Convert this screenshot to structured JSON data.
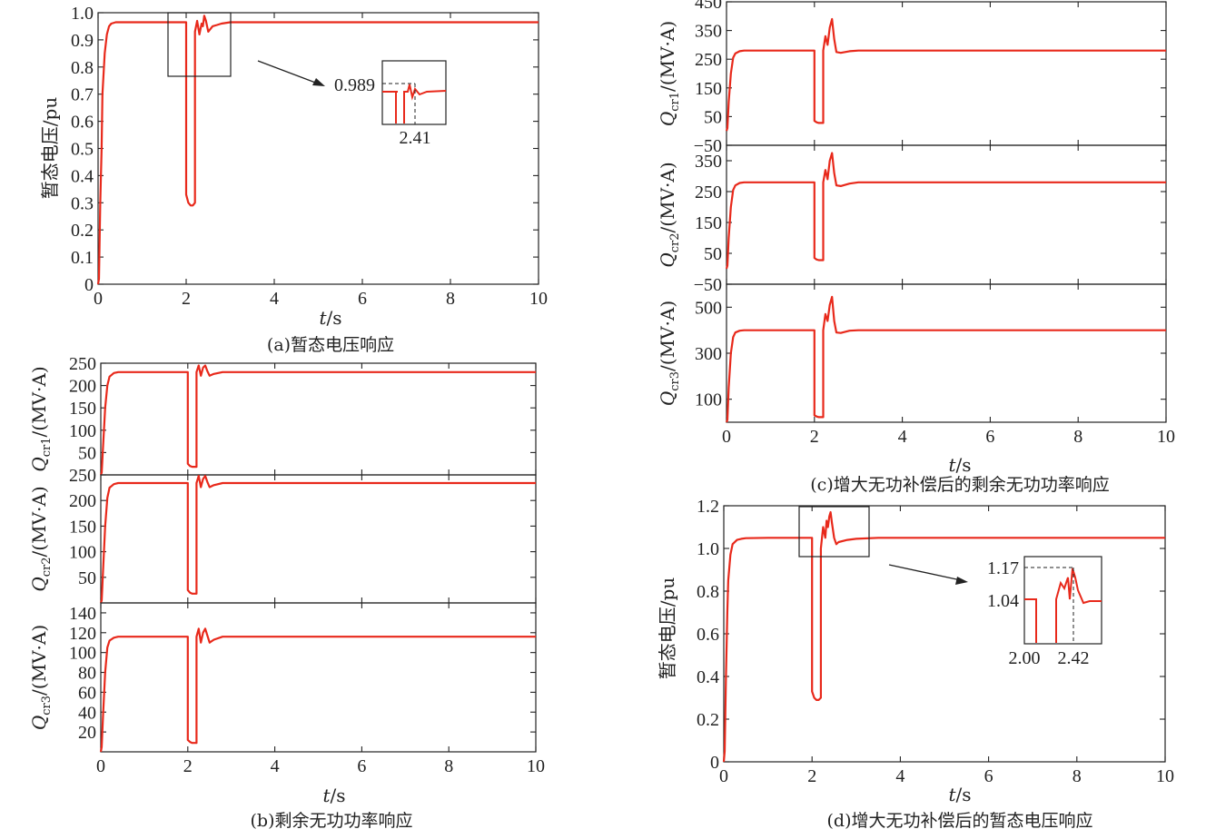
{
  "colors": {
    "trace": "#e8291b",
    "axis": "#222222",
    "annotation": "#222222"
  },
  "chart_data": [
    {
      "id": "a",
      "type": "line",
      "caption": "(a)暂态电压响应",
      "ylabel": "暂态电压/pu",
      "xlabel_var": "t",
      "xlabel_unit": "/s",
      "xlim": [
        0,
        10
      ],
      "xticks": [
        "0",
        "2",
        "4",
        "6",
        "8",
        "10"
      ],
      "ylim": [
        0,
        1.0
      ],
      "yticks": [
        "0",
        "0.1",
        "0.2",
        "0.3",
        "0.4",
        "0.5",
        "0.6",
        "0.7",
        "0.8",
        "0.9",
        "1.0"
      ],
      "series": [
        {
          "x": [
            0,
            0.02,
            0.05,
            0.08,
            0.1,
            0.15,
            0.2,
            0.25,
            0.3,
            0.4,
            0.5,
            1.0,
            1.5,
            1.95,
            2.0,
            2.0,
            2.05,
            2.1,
            2.15,
            2.2,
            2.2,
            2.25,
            2.3,
            2.35,
            2.38,
            2.41,
            2.45,
            2.5,
            2.55,
            2.6,
            2.7,
            2.8,
            3.0,
            3.5,
            4,
            6,
            8,
            10
          ],
          "y": [
            0.0,
            0.02,
            0.3,
            0.5,
            0.7,
            0.85,
            0.92,
            0.95,
            0.96,
            0.965,
            0.965,
            0.965,
            0.965,
            0.965,
            0.965,
            0.33,
            0.3,
            0.29,
            0.29,
            0.3,
            0.93,
            0.97,
            0.92,
            0.96,
            0.95,
            0.989,
            0.97,
            0.93,
            0.94,
            0.95,
            0.955,
            0.96,
            0.965,
            0.965,
            0.965,
            0.965,
            0.965,
            0.965
          ]
        }
      ],
      "annotations": [
        {
          "value": "0.989"
        },
        {
          "value": "2.41"
        }
      ]
    },
    {
      "id": "b",
      "type": "line",
      "caption": "(b)剩余无功功率响应",
      "xlabel_var": "t",
      "xlabel_unit": "/s",
      "xlim": [
        0,
        10
      ],
      "xticks": [
        "0",
        "2",
        "4",
        "6",
        "8",
        "10"
      ],
      "panels": [
        {
          "ylabel_sub": "cr1",
          "ylabel_unit": "/(MV·A)",
          "ylim": [
            0,
            250
          ],
          "yticks": [
            "50",
            "100",
            "150",
            "200",
            "250"
          ],
          "series": [
            {
              "x": [
                0,
                0.02,
                0.05,
                0.1,
                0.15,
                0.2,
                0.3,
                0.4,
                0.5,
                1.0,
                2.0,
                2.0,
                2.05,
                2.1,
                2.2,
                2.2,
                2.25,
                2.3,
                2.35,
                2.4,
                2.45,
                2.5,
                2.6,
                2.8,
                3.0,
                10
              ],
              "y": [
                0,
                5,
                60,
                150,
                200,
                220,
                228,
                230,
                230,
                230,
                230,
                25,
                20,
                18,
                18,
                230,
                245,
                222,
                240,
                245,
                232,
                222,
                226,
                230,
                230,
                230
              ]
            }
          ]
        },
        {
          "ylabel_sub": "cr2",
          "ylabel_unit": "/(MV·A)",
          "ylim": [
            0,
            250
          ],
          "yticks": [
            "50",
            "100",
            "150",
            "200",
            "250"
          ],
          "series": [
            {
              "x": [
                0,
                0.02,
                0.05,
                0.1,
                0.15,
                0.2,
                0.3,
                0.4,
                0.5,
                1.0,
                2.0,
                2.0,
                2.05,
                2.1,
                2.2,
                2.2,
                2.25,
                2.3,
                2.35,
                2.4,
                2.45,
                2.5,
                2.6,
                2.8,
                3.0,
                10
              ],
              "y": [
                0,
                5,
                60,
                150,
                205,
                225,
                232,
                234,
                234,
                234,
                234,
                25,
                20,
                18,
                18,
                234,
                248,
                226,
                242,
                248,
                236,
                226,
                230,
                234,
                234,
                234
              ]
            }
          ]
        },
        {
          "ylabel_sub": "cr3",
          "ylabel_unit": "/(MV·A)",
          "ylim": [
            0,
            150
          ],
          "yticks": [
            "20",
            "40",
            "60",
            "80",
            "100",
            "120",
            "140"
          ],
          "series": [
            {
              "x": [
                0,
                0.02,
                0.05,
                0.1,
                0.15,
                0.2,
                0.3,
                0.4,
                0.5,
                1.0,
                2.0,
                2.0,
                2.05,
                2.1,
                2.2,
                2.2,
                2.25,
                2.3,
                2.35,
                2.4,
                2.45,
                2.5,
                2.6,
                2.8,
                3.0,
                10
              ],
              "y": [
                0,
                5,
                35,
                80,
                105,
                112,
                115,
                116,
                116,
                116,
                116,
                12,
                10,
                9,
                9,
                116,
                124,
                110,
                120,
                124,
                117,
                110,
                113,
                116,
                116,
                116
              ]
            }
          ]
        }
      ]
    },
    {
      "id": "c",
      "type": "line",
      "caption": "(c)增大无功补偿后的剩余无功功率响应",
      "xlabel_var": "t",
      "xlabel_unit": "/s",
      "xlim": [
        0,
        10
      ],
      "xticks": [
        "0",
        "2",
        "4",
        "6",
        "8",
        "10"
      ],
      "panels": [
        {
          "ylabel_sub": "cr1",
          "ylabel_unit": "/(MV·A)",
          "ylim": [
            -50,
            450
          ],
          "yticks": [
            "−50",
            "50",
            "150",
            "250",
            "350",
            "450"
          ],
          "series": [
            {
              "x": [
                0,
                0.02,
                0.05,
                0.1,
                0.15,
                0.2,
                0.3,
                0.4,
                0.5,
                1.0,
                2.0,
                2.0,
                2.05,
                2.1,
                2.2,
                2.2,
                2.25,
                2.3,
                2.35,
                2.4,
                2.45,
                2.5,
                2.6,
                2.8,
                3.0,
                10
              ],
              "y": [
                0,
                10,
                100,
                200,
                255,
                270,
                278,
                280,
                280,
                280,
                280,
                35,
                30,
                28,
                28,
                280,
                330,
                300,
                360,
                390,
                320,
                275,
                272,
                278,
                280,
                280
              ]
            }
          ]
        },
        {
          "ylabel_sub": "cr2",
          "ylabel_unit": "/(MV·A)",
          "ylim": [
            -50,
            400
          ],
          "yticks": [
            "−50",
            "50",
            "150",
            "250",
            "350"
          ],
          "series": [
            {
              "x": [
                0,
                0.02,
                0.05,
                0.1,
                0.15,
                0.2,
                0.3,
                0.4,
                0.5,
                1.0,
                2.0,
                2.0,
                2.05,
                2.1,
                2.2,
                2.2,
                2.25,
                2.3,
                2.35,
                2.4,
                2.45,
                2.5,
                2.6,
                2.8,
                3.0,
                10
              ],
              "y": [
                0,
                10,
                100,
                200,
                255,
                270,
                278,
                280,
                280,
                280,
                280,
                35,
                30,
                28,
                28,
                280,
                320,
                290,
                350,
                375,
                310,
                270,
                268,
                276,
                280,
                280
              ]
            }
          ]
        },
        {
          "ylabel_sub": "cr3",
          "ylabel_unit": "/(MV·A)",
          "ylim": [
            0,
            600
          ],
          "yticks": [
            "100",
            "300",
            "500"
          ],
          "series": [
            {
              "x": [
                0,
                0.02,
                0.05,
                0.1,
                0.15,
                0.2,
                0.3,
                0.4,
                0.5,
                1.0,
                2.0,
                2.0,
                2.05,
                2.1,
                2.2,
                2.2,
                2.25,
                2.3,
                2.35,
                2.4,
                2.45,
                2.5,
                2.6,
                2.8,
                3.0,
                10
              ],
              "y": [
                0,
                10,
                150,
                300,
                370,
                390,
                398,
                400,
                400,
                400,
                400,
                30,
                25,
                22,
                22,
                400,
                470,
                440,
                510,
                545,
                440,
                390,
                388,
                398,
                400,
                400
              ]
            }
          ]
        }
      ]
    },
    {
      "id": "d",
      "type": "line",
      "caption": "(d)增大无功补偿后的暂态电压响应",
      "ylabel": "暂态电压/pu",
      "xlabel_var": "t",
      "xlabel_unit": "/s",
      "xlim": [
        0,
        10
      ],
      "xticks": [
        "0",
        "2",
        "4",
        "6",
        "8",
        "10"
      ],
      "ylim": [
        0,
        1.2
      ],
      "yticks": [
        "0",
        "0.2",
        "0.4",
        "0.6",
        "0.8",
        "1.0",
        "1.2"
      ],
      "series": [
        {
          "x": [
            0,
            0.02,
            0.05,
            0.08,
            0.1,
            0.15,
            0.2,
            0.3,
            0.4,
            0.5,
            1.0,
            1.5,
            2.0,
            2.0,
            2.05,
            2.1,
            2.15,
            2.2,
            2.2,
            2.25,
            2.3,
            2.33,
            2.36,
            2.39,
            2.42,
            2.45,
            2.5,
            2.55,
            2.6,
            2.8,
            3.0,
            3.5,
            4,
            6,
            8,
            10
          ],
          "y": [
            0.0,
            0.05,
            0.4,
            0.7,
            0.85,
            0.97,
            1.02,
            1.04,
            1.045,
            1.048,
            1.05,
            1.05,
            1.05,
            0.33,
            0.3,
            0.29,
            0.29,
            0.3,
            1.0,
            1.1,
            1.05,
            1.13,
            1.1,
            1.15,
            1.17,
            1.12,
            1.05,
            1.02,
            1.03,
            1.04,
            1.045,
            1.05,
            1.05,
            1.05,
            1.05,
            1.05
          ]
        }
      ],
      "annotations": [
        {
          "value": "1.17"
        },
        {
          "value": "1.04"
        },
        {
          "value": "2.00"
        },
        {
          "value": "2.42"
        }
      ]
    }
  ]
}
